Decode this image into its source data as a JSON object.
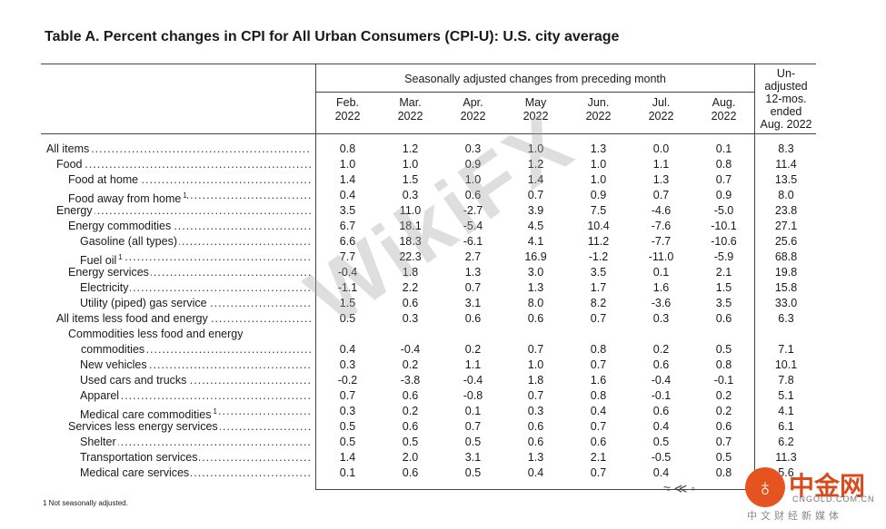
{
  "title": "Table A. Percent changes in CPI for All Urban Consumers (CPI-U): U.S. city average",
  "group_header": "Seasonally adjusted changes from preceding month",
  "columns": [
    {
      "l1": "Feb.",
      "l2": "2022"
    },
    {
      "l1": "Mar.",
      "l2": "2022"
    },
    {
      "l1": "Apr.",
      "l2": "2022"
    },
    {
      "l1": "May",
      "l2": "2022"
    },
    {
      "l1": "Jun.",
      "l2": "2022"
    },
    {
      "l1": "Jul.",
      "l2": "2022"
    },
    {
      "l1": "Aug.",
      "l2": "2022"
    }
  ],
  "last_column": [
    "Un-",
    "adjusted",
    "12-mos.",
    "ended",
    "Aug. 2022"
  ],
  "rows": [
    {
      "label": "All items",
      "sup": "",
      "values": [
        "0.8",
        "1.2",
        "0.3",
        "1.0",
        "1.3",
        "0.0",
        "0.1",
        "8.3"
      ]
    },
    {
      "label": "Food",
      "sup": "",
      "values": [
        "1.0",
        "1.0",
        "0.9",
        "1.2",
        "1.0",
        "1.1",
        "0.8",
        "11.4"
      ]
    },
    {
      "label": "Food at home",
      "sup": "",
      "values": [
        "1.4",
        "1.5",
        "1.0",
        "1.4",
        "1.0",
        "1.3",
        "0.7",
        "13.5"
      ]
    },
    {
      "label": "Food away from home",
      "sup": "1",
      "values": [
        "0.4",
        "0.3",
        "0.6",
        "0.7",
        "0.9",
        "0.7",
        "0.9",
        "8.0"
      ]
    },
    {
      "label": "Energy",
      "sup": "",
      "values": [
        "3.5",
        "11.0",
        "-2.7",
        "3.9",
        "7.5",
        "-4.6",
        "-5.0",
        "23.8"
      ]
    },
    {
      "label": "Energy commodities",
      "sup": "",
      "values": [
        "6.7",
        "18.1",
        "-5.4",
        "4.5",
        "10.4",
        "-7.6",
        "-10.1",
        "27.1"
      ]
    },
    {
      "label": "Gasoline (all types)",
      "sup": "",
      "values": [
        "6.6",
        "18.3",
        "-6.1",
        "4.1",
        "11.2",
        "-7.7",
        "-10.6",
        "25.6"
      ]
    },
    {
      "label": "Fuel oil",
      "sup": "1",
      "values": [
        "7.7",
        "22.3",
        "2.7",
        "16.9",
        "-1.2",
        "-11.0",
        "-5.9",
        "68.8"
      ]
    },
    {
      "label": "Energy services",
      "sup": "",
      "values": [
        "-0.4",
        "1.8",
        "1.3",
        "3.0",
        "3.5",
        "0.1",
        "2.1",
        "19.8"
      ]
    },
    {
      "label": "Electricity",
      "sup": "",
      "values": [
        "-1.1",
        "2.2",
        "0.7",
        "1.3",
        "1.7",
        "1.6",
        "1.5",
        "15.8"
      ]
    },
    {
      "label": "Utility (piped) gas service",
      "sup": "",
      "values": [
        "1.5",
        "0.6",
        "3.1",
        "8.0",
        "8.2",
        "-3.6",
        "3.5",
        "33.0"
      ]
    },
    {
      "label": "All items less food and energy",
      "sup": "",
      "values": [
        "0.5",
        "0.3",
        "0.6",
        "0.6",
        "0.7",
        "0.3",
        "0.6",
        "6.3"
      ]
    },
    {
      "label": "Commodities less food and energy",
      "label2": "commodities",
      "sup": "",
      "values": [
        "0.4",
        "-0.4",
        "0.2",
        "0.7",
        "0.8",
        "0.2",
        "0.5",
        "7.1"
      ]
    },
    {
      "label": "New vehicles",
      "sup": "",
      "values": [
        "0.3",
        "0.2",
        "1.1",
        "1.0",
        "0.7",
        "0.6",
        "0.8",
        "10.1"
      ]
    },
    {
      "label": "Used cars and trucks",
      "sup": "",
      "values": [
        "-0.2",
        "-3.8",
        "-0.4",
        "1.8",
        "1.6",
        "-0.4",
        "-0.1",
        "7.8"
      ]
    },
    {
      "label": "Apparel",
      "sup": "",
      "values": [
        "0.7",
        "0.6",
        "-0.8",
        "0.7",
        "0.8",
        "-0.1",
        "0.2",
        "5.1"
      ]
    },
    {
      "label": "Medical care commodities",
      "sup": "1",
      "values": [
        "0.3",
        "0.2",
        "0.1",
        "0.3",
        "0.4",
        "0.6",
        "0.2",
        "4.1"
      ]
    },
    {
      "label": "Services less energy services",
      "sup": "",
      "values": [
        "0.5",
        "0.6",
        "0.7",
        "0.6",
        "0.7",
        "0.4",
        "0.6",
        "6.1"
      ]
    },
    {
      "label": "Shelter",
      "sup": "",
      "values": [
        "0.5",
        "0.5",
        "0.5",
        "0.6",
        "0.6",
        "0.5",
        "0.7",
        "6.2"
      ]
    },
    {
      "label": "Transportation services",
      "sup": "",
      "values": [
        "1.4",
        "2.0",
        "3.1",
        "1.3",
        "2.1",
        "-0.5",
        "0.5",
        "11.3"
      ]
    },
    {
      "label": "Medical care services",
      "sup": "",
      "values": [
        "0.1",
        "0.6",
        "0.5",
        "0.4",
        "0.7",
        "0.4",
        "0.8",
        "5.6"
      ]
    }
  ],
  "footnote": "1  Not seasonally adjusted.",
  "watermark": "WikiFX",
  "logo": {
    "chinese": "中金网",
    "site": "CNGOLD.COM.CN",
    "sub": "中文财经新媒体"
  }
}
